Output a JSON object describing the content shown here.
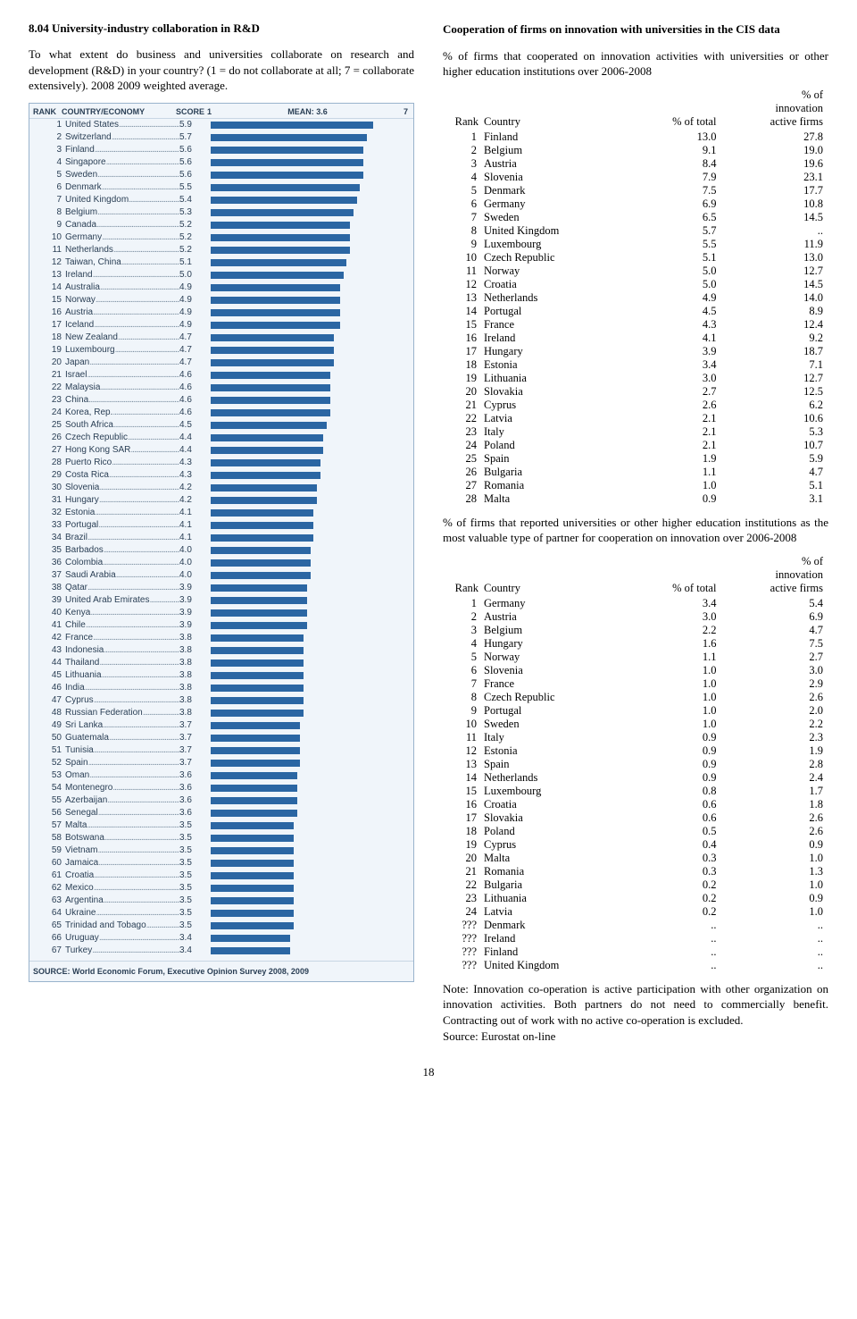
{
  "left": {
    "title": "8.04 University-industry collaboration in R&D",
    "para": "To what extent do business and universities collaborate on research and development (R&D) in your country? (1 = do not collaborate at all; 7 = collaborate extensively). 2008 2009 weighted average.",
    "chart": {
      "header_rank": "RANK",
      "header_country": "COUNTRY/ECONOMY",
      "header_score": "SCORE",
      "scale_min_label": "1",
      "scale_mean_label": "MEAN: 3.6",
      "scale_max_label": "7",
      "scale_min": 1,
      "scale_max": 7,
      "mean_value": 3.6,
      "bar_color": "#2b66a3",
      "bg_color": "#f0f5fa",
      "source_label": "SOURCE:",
      "source_text": "World Economic Forum, Executive Opinion Survey 2008, 2009",
      "rows": [
        {
          "rank": 1,
          "country": "United States",
          "score": 5.9
        },
        {
          "rank": 2,
          "country": "Switzerland",
          "score": 5.7
        },
        {
          "rank": 3,
          "country": "Finland",
          "score": 5.6
        },
        {
          "rank": 4,
          "country": "Singapore",
          "score": 5.6
        },
        {
          "rank": 5,
          "country": "Sweden",
          "score": 5.6
        },
        {
          "rank": 6,
          "country": "Denmark",
          "score": 5.5
        },
        {
          "rank": 7,
          "country": "United Kingdom",
          "score": 5.4
        },
        {
          "rank": 8,
          "country": "Belgium",
          "score": 5.3
        },
        {
          "rank": 9,
          "country": "Canada",
          "score": 5.2
        },
        {
          "rank": 10,
          "country": "Germany",
          "score": 5.2
        },
        {
          "rank": 11,
          "country": "Netherlands",
          "score": 5.2
        },
        {
          "rank": 12,
          "country": "Taiwan, China",
          "score": 5.1
        },
        {
          "rank": 13,
          "country": "Ireland",
          "score": 5.0
        },
        {
          "rank": 14,
          "country": "Australia",
          "score": 4.9
        },
        {
          "rank": 15,
          "country": "Norway",
          "score": 4.9
        },
        {
          "rank": 16,
          "country": "Austria",
          "score": 4.9
        },
        {
          "rank": 17,
          "country": "Iceland",
          "score": 4.9
        },
        {
          "rank": 18,
          "country": "New Zealand",
          "score": 4.7
        },
        {
          "rank": 19,
          "country": "Luxembourg",
          "score": 4.7
        },
        {
          "rank": 20,
          "country": "Japan",
          "score": 4.7
        },
        {
          "rank": 21,
          "country": "Israel",
          "score": 4.6
        },
        {
          "rank": 22,
          "country": "Malaysia",
          "score": 4.6
        },
        {
          "rank": 23,
          "country": "China",
          "score": 4.6
        },
        {
          "rank": 24,
          "country": "Korea, Rep.",
          "score": 4.6
        },
        {
          "rank": 25,
          "country": "South Africa",
          "score": 4.5
        },
        {
          "rank": 26,
          "country": "Czech Republic",
          "score": 4.4
        },
        {
          "rank": 27,
          "country": "Hong Kong SAR",
          "score": 4.4
        },
        {
          "rank": 28,
          "country": "Puerto Rico",
          "score": 4.3
        },
        {
          "rank": 29,
          "country": "Costa Rica",
          "score": 4.3
        },
        {
          "rank": 30,
          "country": "Slovenia",
          "score": 4.2
        },
        {
          "rank": 31,
          "country": "Hungary",
          "score": 4.2
        },
        {
          "rank": 32,
          "country": "Estonia",
          "score": 4.1
        },
        {
          "rank": 33,
          "country": "Portugal",
          "score": 4.1
        },
        {
          "rank": 34,
          "country": "Brazil",
          "score": 4.1
        },
        {
          "rank": 35,
          "country": "Barbados",
          "score": 4.0
        },
        {
          "rank": 36,
          "country": "Colombia",
          "score": 4.0
        },
        {
          "rank": 37,
          "country": "Saudi Arabia",
          "score": 4.0
        },
        {
          "rank": 38,
          "country": "Qatar",
          "score": 3.9
        },
        {
          "rank": 39,
          "country": "United Arab Emirates",
          "score": 3.9
        },
        {
          "rank": 40,
          "country": "Kenya",
          "score": 3.9
        },
        {
          "rank": 41,
          "country": "Chile",
          "score": 3.9
        },
        {
          "rank": 42,
          "country": "France",
          "score": 3.8
        },
        {
          "rank": 43,
          "country": "Indonesia",
          "score": 3.8
        },
        {
          "rank": 44,
          "country": "Thailand",
          "score": 3.8
        },
        {
          "rank": 45,
          "country": "Lithuania",
          "score": 3.8
        },
        {
          "rank": 46,
          "country": "India",
          "score": 3.8
        },
        {
          "rank": 47,
          "country": "Cyprus",
          "score": 3.8
        },
        {
          "rank": 48,
          "country": "Russian Federation",
          "score": 3.8
        },
        {
          "rank": 49,
          "country": "Sri Lanka",
          "score": 3.7
        },
        {
          "rank": 50,
          "country": "Guatemala",
          "score": 3.7
        },
        {
          "rank": 51,
          "country": "Tunisia",
          "score": 3.7
        },
        {
          "rank": 52,
          "country": "Spain",
          "score": 3.7
        },
        {
          "rank": 53,
          "country": "Oman",
          "score": 3.6
        },
        {
          "rank": 54,
          "country": "Montenegro",
          "score": 3.6
        },
        {
          "rank": 55,
          "country": "Azerbaijan",
          "score": 3.6
        },
        {
          "rank": 56,
          "country": "Senegal",
          "score": 3.6
        },
        {
          "rank": 57,
          "country": "Malta",
          "score": 3.5
        },
        {
          "rank": 58,
          "country": "Botswana",
          "score": 3.5
        },
        {
          "rank": 59,
          "country": "Vietnam",
          "score": 3.5
        },
        {
          "rank": 60,
          "country": "Jamaica",
          "score": 3.5
        },
        {
          "rank": 61,
          "country": "Croatia",
          "score": 3.5
        },
        {
          "rank": 62,
          "country": "Mexico",
          "score": 3.5
        },
        {
          "rank": 63,
          "country": "Argentina",
          "score": 3.5
        },
        {
          "rank": 64,
          "country": "Ukraine",
          "score": 3.5
        },
        {
          "rank": 65,
          "country": "Trinidad and Tobago",
          "score": 3.5
        },
        {
          "rank": 66,
          "country": "Uruguay",
          "score": 3.4
        },
        {
          "rank": 67,
          "country": "Turkey",
          "score": 3.4
        }
      ]
    }
  },
  "right": {
    "heading": "Cooperation of firms on innovation with universities in the CIS data",
    "intro1": "% of firms that cooperated on innovation activities with universities or other higher education institutions over 2006-2008",
    "th_rank": "Rank",
    "th_country": "Country",
    "th_total": "% of total",
    "th_active": "% of\ninnovation\nactive firms",
    "table1": [
      {
        "rank": "1",
        "country": "Finland",
        "total": "13.0",
        "active": "27.8"
      },
      {
        "rank": "2",
        "country": "Belgium",
        "total": "9.1",
        "active": "19.0"
      },
      {
        "rank": "3",
        "country": "Austria",
        "total": "8.4",
        "active": "19.6"
      },
      {
        "rank": "4",
        "country": "Slovenia",
        "total": "7.9",
        "active": "23.1"
      },
      {
        "rank": "5",
        "country": "Denmark",
        "total": "7.5",
        "active": "17.7"
      },
      {
        "rank": "6",
        "country": "Germany",
        "total": "6.9",
        "active": "10.8"
      },
      {
        "rank": "7",
        "country": "Sweden",
        "total": "6.5",
        "active": "14.5"
      },
      {
        "rank": "8",
        "country": "United Kingdom",
        "total": "5.7",
        "active": ".."
      },
      {
        "rank": "9",
        "country": "Luxembourg",
        "total": "5.5",
        "active": "11.9"
      },
      {
        "rank": "10",
        "country": "Czech Republic",
        "total": "5.1",
        "active": "13.0"
      },
      {
        "rank": "11",
        "country": "Norway",
        "total": "5.0",
        "active": "12.7"
      },
      {
        "rank": "12",
        "country": "Croatia",
        "total": "5.0",
        "active": "14.5"
      },
      {
        "rank": "13",
        "country": "Netherlands",
        "total": "4.9",
        "active": "14.0"
      },
      {
        "rank": "14",
        "country": "Portugal",
        "total": "4.5",
        "active": "8.9"
      },
      {
        "rank": "15",
        "country": "France",
        "total": "4.3",
        "active": "12.4"
      },
      {
        "rank": "16",
        "country": "Ireland",
        "total": "4.1",
        "active": "9.2"
      },
      {
        "rank": "17",
        "country": "Hungary",
        "total": "3.9",
        "active": "18.7"
      },
      {
        "rank": "18",
        "country": "Estonia",
        "total": "3.4",
        "active": "7.1"
      },
      {
        "rank": "19",
        "country": "Lithuania",
        "total": "3.0",
        "active": "12.7"
      },
      {
        "rank": "20",
        "country": "Slovakia",
        "total": "2.7",
        "active": "12.5"
      },
      {
        "rank": "21",
        "country": "Cyprus",
        "total": "2.6",
        "active": "6.2"
      },
      {
        "rank": "22",
        "country": "Latvia",
        "total": "2.1",
        "active": "10.6"
      },
      {
        "rank": "23",
        "country": "Italy",
        "total": "2.1",
        "active": "5.3"
      },
      {
        "rank": "24",
        "country": "Poland",
        "total": "2.1",
        "active": "10.7"
      },
      {
        "rank": "25",
        "country": "Spain",
        "total": "1.9",
        "active": "5.9"
      },
      {
        "rank": "26",
        "country": "Bulgaria",
        "total": "1.1",
        "active": "4.7"
      },
      {
        "rank": "27",
        "country": "Romania",
        "total": "1.0",
        "active": "5.1"
      },
      {
        "rank": "28",
        "country": "Malta",
        "total": "0.9",
        "active": "3.1"
      }
    ],
    "intro2": "% of firms that reported universities or other higher education institutions as the most valuable type of partner for cooperation on innovation over 2006-2008",
    "table2": [
      {
        "rank": "1",
        "country": "Germany",
        "total": "3.4",
        "active": "5.4"
      },
      {
        "rank": "2",
        "country": "Austria",
        "total": "3.0",
        "active": "6.9"
      },
      {
        "rank": "3",
        "country": "Belgium",
        "total": "2.2",
        "active": "4.7"
      },
      {
        "rank": "4",
        "country": "Hungary",
        "total": "1.6",
        "active": "7.5"
      },
      {
        "rank": "5",
        "country": "Norway",
        "total": "1.1",
        "active": "2.7"
      },
      {
        "rank": "6",
        "country": "Slovenia",
        "total": "1.0",
        "active": "3.0"
      },
      {
        "rank": "7",
        "country": "France",
        "total": "1.0",
        "active": "2.9"
      },
      {
        "rank": "8",
        "country": "Czech Republic",
        "total": "1.0",
        "active": "2.6"
      },
      {
        "rank": "9",
        "country": "Portugal",
        "total": "1.0",
        "active": "2.0"
      },
      {
        "rank": "10",
        "country": "Sweden",
        "total": "1.0",
        "active": "2.2"
      },
      {
        "rank": "11",
        "country": "Italy",
        "total": "0.9",
        "active": "2.3"
      },
      {
        "rank": "12",
        "country": "Estonia",
        "total": "0.9",
        "active": "1.9"
      },
      {
        "rank": "13",
        "country": "Spain",
        "total": "0.9",
        "active": "2.8"
      },
      {
        "rank": "14",
        "country": "Netherlands",
        "total": "0.9",
        "active": "2.4"
      },
      {
        "rank": "15",
        "country": "Luxembourg",
        "total": "0.8",
        "active": "1.7"
      },
      {
        "rank": "16",
        "country": "Croatia",
        "total": "0.6",
        "active": "1.8"
      },
      {
        "rank": "17",
        "country": "Slovakia",
        "total": "0.6",
        "active": "2.6"
      },
      {
        "rank": "18",
        "country": "Poland",
        "total": "0.5",
        "active": "2.6"
      },
      {
        "rank": "19",
        "country": "Cyprus",
        "total": "0.4",
        "active": "0.9"
      },
      {
        "rank": "20",
        "country": "Malta",
        "total": "0.3",
        "active": "1.0"
      },
      {
        "rank": "21",
        "country": "Romania",
        "total": "0.3",
        "active": "1.3"
      },
      {
        "rank": "22",
        "country": "Bulgaria",
        "total": "0.2",
        "active": "1.0"
      },
      {
        "rank": "23",
        "country": "Lithuania",
        "total": "0.2",
        "active": "0.9"
      },
      {
        "rank": "24",
        "country": "Latvia",
        "total": "0.2",
        "active": "1.0"
      },
      {
        "rank": "???",
        "country": "Denmark",
        "total": "..",
        "active": ".."
      },
      {
        "rank": "???",
        "country": "Ireland",
        "total": "..",
        "active": ".."
      },
      {
        "rank": "???",
        "country": "Finland",
        "total": "..",
        "active": ".."
      },
      {
        "rank": "???",
        "country": "United Kingdom",
        "total": "..",
        "active": ".."
      }
    ],
    "note": "Note: Innovation co-operation is active participation with other organization on innovation activities. Both partners do not need to commercially benefit. Contracting out of work with no active co-operation is excluded.",
    "source": "Source: Eurostat on-line"
  },
  "page_number": "18"
}
